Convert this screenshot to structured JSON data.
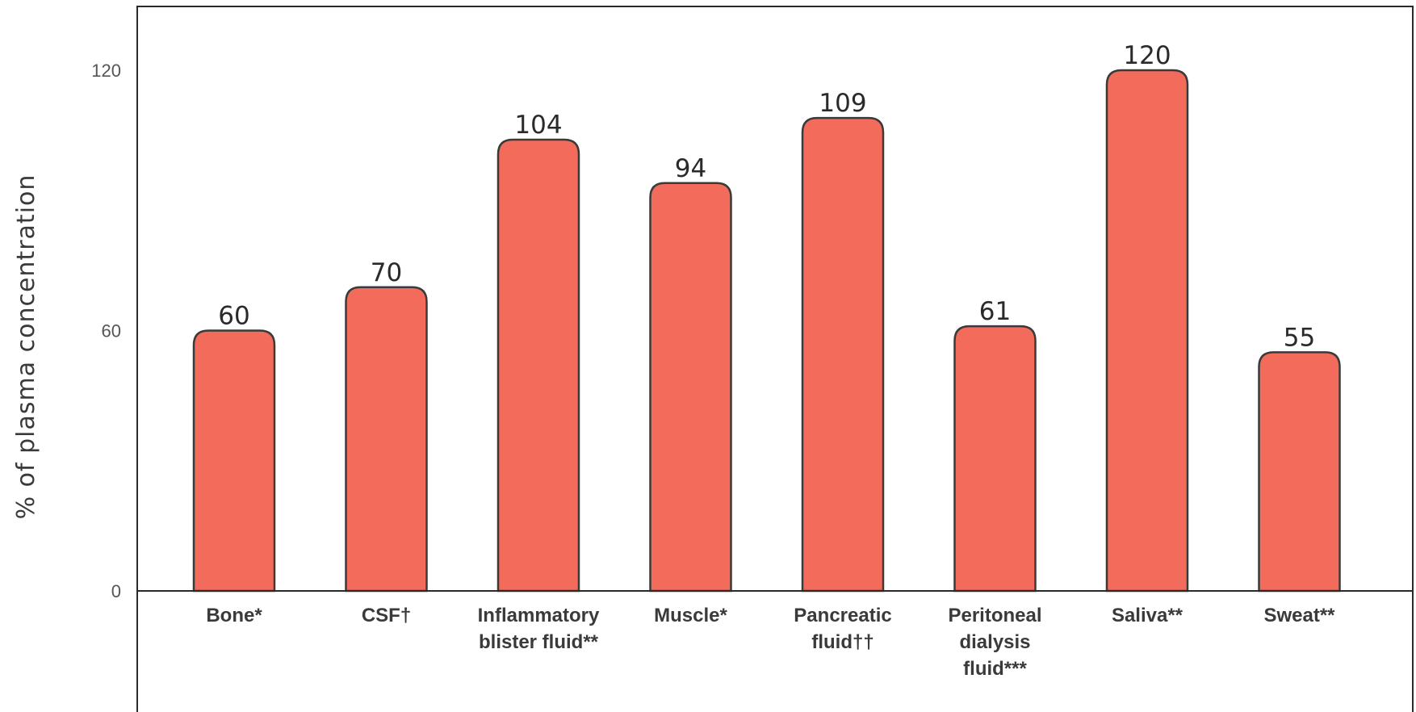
{
  "chart_data": {
    "type": "bar",
    "title": "",
    "xlabel": "",
    "ylabel": "% of plasma concentration",
    "ylim": [
      0,
      120
    ],
    "yticks": [
      "0",
      "60",
      "120"
    ],
    "grid": false,
    "categories": [
      [
        "Bone*"
      ],
      [
        "CSF†"
      ],
      [
        "Inflammatory",
        "blister fluid**"
      ],
      [
        "Muscle*"
      ],
      [
        "Pancreatic",
        "fluid††"
      ],
      [
        "Peritoneal",
        "dialysis",
        "fluid***"
      ],
      [
        "Saliva**"
      ],
      [
        "Sweat**"
      ]
    ],
    "values": [
      60,
      70,
      104,
      94,
      109,
      61,
      120,
      55
    ],
    "bar_color": "#f26b5b",
    "bar_edge_color": "#3a3a3a"
  }
}
